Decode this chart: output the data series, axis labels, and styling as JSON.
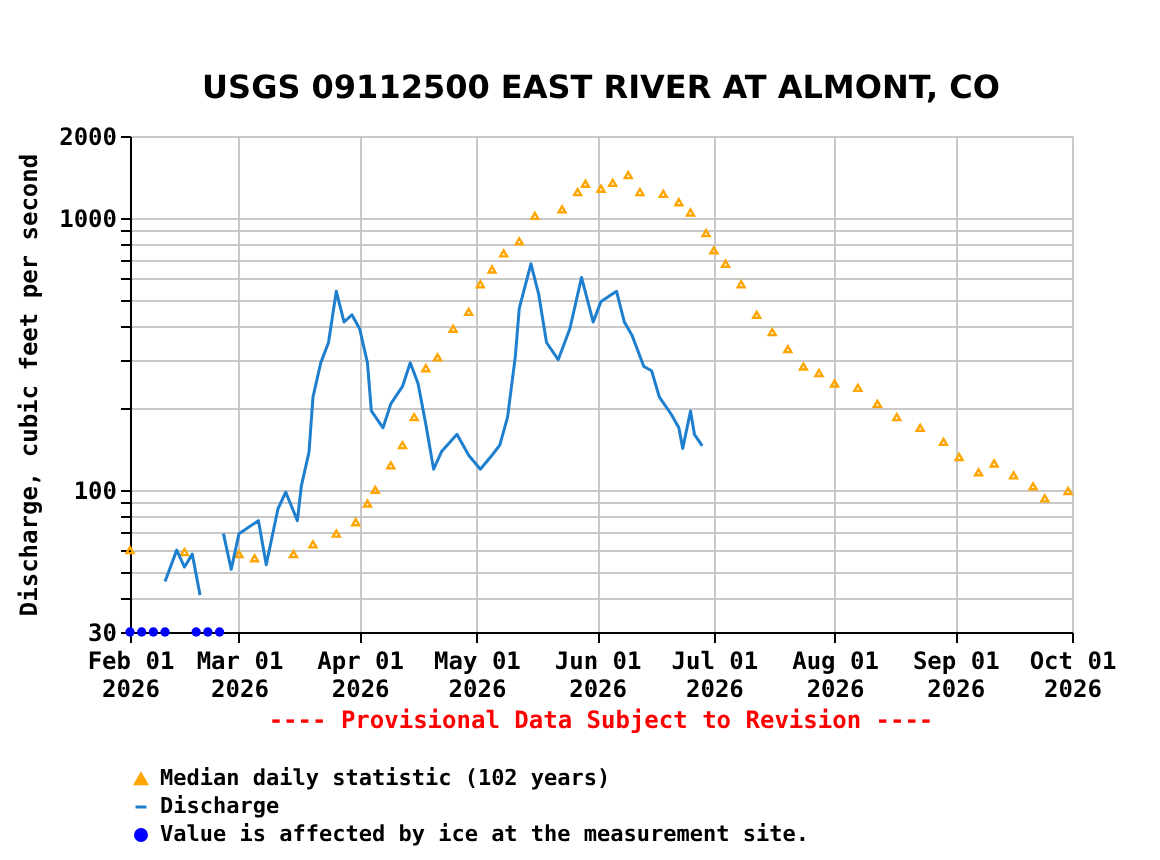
{
  "chart_data": {
    "type": "line",
    "title": "USGS 09112500 EAST RIVER AT ALMONT, CO",
    "ylabel": "Discharge, cubic feet per second",
    "annotations": [
      "---- Provisional Data Subject to Revision ----"
    ],
    "log": "y",
    "grid": true,
    "legend": "bottom",
    "xlim": [
      "2026-02-01",
      "2026-10-01"
    ],
    "xticks": [
      {
        "value": "2026-02-01",
        "label": "Feb 01 2026"
      },
      {
        "value": "2026-03-01",
        "label": "Mar 01 2026"
      },
      {
        "value": "2026-04-01",
        "label": "Apr 01 2026"
      },
      {
        "value": "2026-05-01",
        "label": "May 01 2026"
      },
      {
        "value": "2026-06-01",
        "label": "Jun 01 2026"
      },
      {
        "value": "2026-07-01",
        "label": "Jul 01 2026"
      },
      {
        "value": "2026-08-01",
        "label": "Aug 01 2026"
      },
      {
        "value": "2026-09-01",
        "label": "Sep 01 2026"
      },
      {
        "value": "2026-10-01",
        "label": "Oct 01 2026"
      }
    ],
    "ylim": [
      30,
      2000
    ],
    "yticks": [
      30,
      {
        "value": 40,
        "label": null
      },
      {
        "value": 50,
        "label": null
      },
      {
        "value": 60,
        "label": null
      },
      {
        "value": 70,
        "label": null
      },
      {
        "value": 80,
        "label": null
      },
      {
        "value": 90,
        "label": null
      },
      100,
      {
        "value": 200,
        "label": null
      },
      {
        "value": 300,
        "label": null
      },
      {
        "value": 400,
        "label": null
      },
      {
        "value": 500,
        "label": null
      },
      {
        "value": 600,
        "label": null
      },
      {
        "value": 700,
        "label": null
      },
      {
        "value": 800,
        "label": null
      },
      {
        "value": 900,
        "label": null
      },
      1000,
      2000
    ],
    "series": [
      {
        "name": "Median daily statistic (102 years)",
        "type": "scatter",
        "marker": "triangle",
        "color": "#ffa500",
        "x": [
          "2026-02-01",
          "2026-02-15",
          "2026-03-01",
          "2026-03-05",
          "2026-03-15",
          "2026-03-20",
          "2026-03-26",
          "2026-03-31",
          "2026-04-03",
          "2026-04-05",
          "2026-04-09",
          "2026-04-12",
          "2026-04-15",
          "2026-04-18",
          "2026-04-21",
          "2026-04-25",
          "2026-04-29",
          "2026-05-02",
          "2026-05-05",
          "2026-05-08",
          "2026-05-12",
          "2026-05-16",
          "2026-05-23",
          "2026-05-27",
          "2026-05-29",
          "2026-06-02",
          "2026-06-05",
          "2026-06-09",
          "2026-06-12",
          "2026-06-18",
          "2026-06-22",
          "2026-06-25",
          "2026-06-29",
          "2026-07-01",
          "2026-07-04",
          "2026-07-08",
          "2026-07-12",
          "2026-07-16",
          "2026-07-20",
          "2026-07-24",
          "2026-07-28",
          "2026-08-01",
          "2026-08-07",
          "2026-08-12",
          "2026-08-17",
          "2026-08-23",
          "2026-08-29",
          "2026-09-02",
          "2026-09-07",
          "2026-09-11",
          "2026-09-16",
          "2026-09-21",
          "2026-09-24",
          "2026-09-30"
        ],
        "values": [
          60,
          59,
          58,
          56,
          58,
          63,
          69,
          76,
          89,
          100,
          123,
          146,
          185,
          280,
          307,
          391,
          451,
          570,
          646,
          740,
          820,
          1017,
          1075,
          1244,
          1335,
          1280,
          1345,
          1436,
          1244,
          1225,
          1142,
          1047,
          879,
          760,
          678,
          570,
          440,
          380,
          329,
          284,
          269,
          246,
          237,
          207,
          185,
          169,
          150,
          132,
          116,
          125,
          113,
          103,
          93,
          99
        ]
      },
      {
        "name": "Discharge",
        "color": "#1f7fcf",
        "x": [
          "2026-02-10",
          "2026-02-13",
          "2026-02-15",
          "2026-02-17",
          "2026-02-19",
          "2026-02-21",
          "2026-02-25",
          "2026-02-27",
          "2026-03-01",
          "2026-03-06",
          "2026-03-08",
          "2026-03-11",
          "2026-03-13",
          "2026-03-16",
          "2026-03-17",
          "2026-03-19",
          "2026-03-20",
          "2026-03-22",
          "2026-03-24",
          "2026-03-26",
          "2026-03-28",
          "2026-03-30",
          "2026-04-01",
          "2026-04-03",
          "2026-04-04",
          "2026-04-07",
          "2026-04-09",
          "2026-04-12",
          "2026-04-14",
          "2026-04-16",
          "2026-04-18",
          "2026-04-20",
          "2026-04-22",
          "2026-04-26",
          "2026-04-29",
          "2026-05-02",
          "2026-05-05",
          "2026-05-07",
          "2026-05-09",
          "2026-05-11",
          "2026-05-12",
          "2026-05-15",
          "2026-05-17",
          "2026-05-19",
          "2026-05-22",
          "2026-05-25",
          "2026-05-28",
          "2026-05-31",
          "2026-06-02",
          "2026-06-06",
          "2026-06-08",
          "2026-06-10",
          "2026-06-13",
          "2026-06-15",
          "2026-06-17",
          "2026-06-20",
          "2026-06-22",
          "2026-06-23",
          "2026-06-25",
          "2026-06-26",
          "2026-06-28"
        ],
        "values": [
          46,
          60,
          52,
          58,
          41,
          null,
          69,
          51,
          69,
          77,
          53,
          85,
          98,
          77,
          103,
          138,
          219,
          293,
          348,
          537,
          414,
          440,
          391,
          293,
          195,
          169,
          207,
          240,
          293,
          246,
          174,
          119,
          138,
          160,
          134,
          119,
          134,
          146,
          185,
          310,
          465,
          678,
          523,
          348,
          301,
          391,
          604,
          414,
          493,
          537,
          414,
          369,
          284,
          274,
          219,
          190,
          169,
          142,
          195,
          160,
          145
        ]
      },
      {
        "name": "Value is affected by ice at the measurement site.",
        "type": "scatter",
        "marker": "circle",
        "color": "#0000ff",
        "x": [
          "2026-02-01",
          "2026-02-04",
          "2026-02-07",
          "2026-02-10",
          "2026-02-18",
          "2026-02-21",
          "2026-02-24"
        ],
        "values": [
          30,
          30,
          30,
          30,
          30,
          30,
          30
        ]
      }
    ]
  }
}
